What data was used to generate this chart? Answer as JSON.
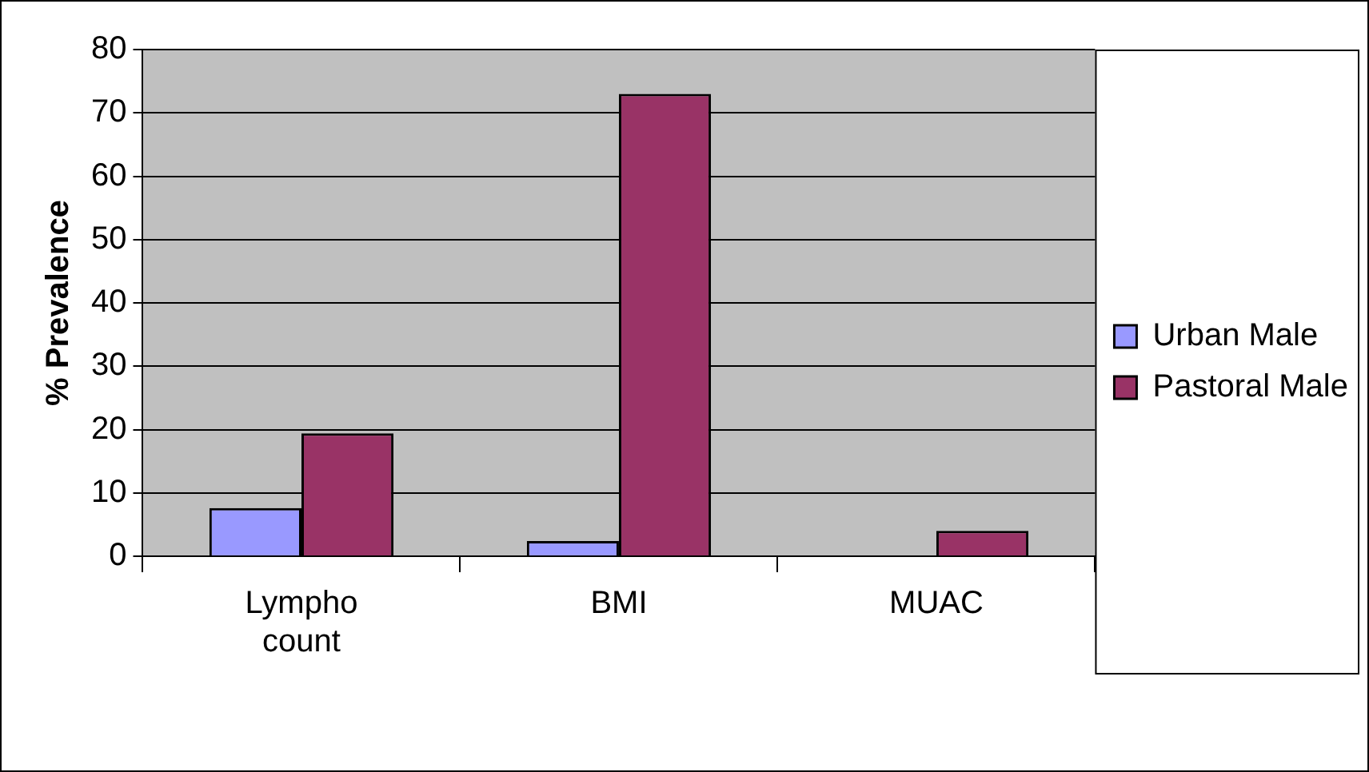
{
  "chart_data": {
    "type": "bar",
    "ylabel": "% Prevalence",
    "categories": [
      "Lympho count",
      "BMI",
      "MUAC"
    ],
    "series": [
      {
        "name": "Urban Male",
        "color": "#9999ff",
        "values": [
          7.6,
          2.4,
          0
        ]
      },
      {
        "name": "Pastoral Male",
        "color": "#993366",
        "values": [
          19.4,
          73,
          4
        ]
      }
    ],
    "ylim": [
      0,
      80
    ],
    "yticks": [
      0,
      10,
      20,
      30,
      40,
      50,
      60,
      70,
      80
    ],
    "grid": "y",
    "legend": "right"
  }
}
